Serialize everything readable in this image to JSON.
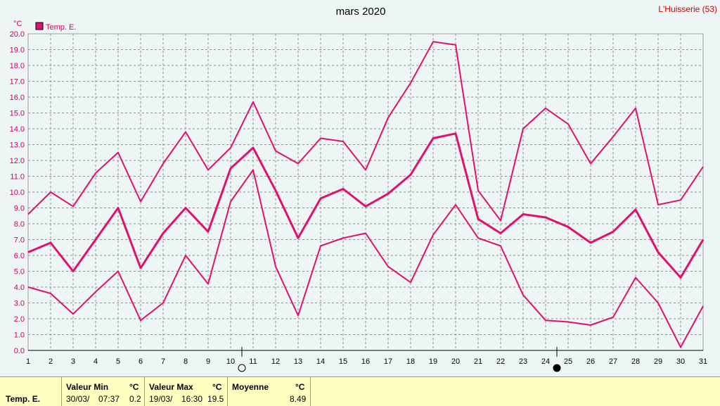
{
  "header": {
    "title": "mars 2020",
    "station": "L'Huisserie (53)"
  },
  "chart_data": {
    "type": "line",
    "title": "mars 2020",
    "ylabel": "°C",
    "legend": "Temp. E.",
    "legend_placement": "top-left",
    "grid": true,
    "ylim": [
      0,
      20
    ],
    "yticks": [
      "0.0",
      "1.0",
      "2.0",
      "3.0",
      "4.0",
      "5.0",
      "6.0",
      "7.0",
      "8.0",
      "9.0",
      "10.0",
      "11.0",
      "12.0",
      "13.0",
      "14.0",
      "15.0",
      "16.0",
      "17.0",
      "18.0",
      "19.0",
      "20.0"
    ],
    "xticks": [
      "1",
      "2",
      "3",
      "4",
      "5",
      "6",
      "7",
      "8",
      "9",
      "10",
      "11",
      "12",
      "13",
      "14",
      "15",
      "16",
      "17",
      "18",
      "19",
      "20",
      "21",
      "22",
      "23",
      "24",
      "25",
      "26",
      "27",
      "28",
      "29",
      "30",
      "31"
    ],
    "color": "#e0106e",
    "series": [
      {
        "role": "max",
        "values": [
          8.6,
          10.0,
          9.1,
          11.2,
          12.5,
          9.4,
          11.8,
          13.8,
          11.4,
          12.8,
          15.7,
          12.6,
          11.8,
          13.4,
          13.2,
          11.4,
          14.7,
          16.9,
          19.5,
          19.3,
          10.1,
          8.2,
          14.0,
          15.3,
          14.3,
          11.8,
          13.5,
          15.3,
          9.2,
          9.5,
          11.6
        ]
      },
      {
        "role": "mean",
        "values": [
          6.2,
          6.8,
          5.0,
          7.0,
          9.0,
          5.2,
          7.4,
          9.0,
          7.5,
          11.5,
          12.8,
          10.1,
          7.1,
          9.6,
          10.2,
          9.1,
          9.9,
          11.1,
          13.4,
          13.7,
          8.3,
          7.4,
          8.6,
          8.4,
          7.8,
          6.8,
          7.5,
          8.9,
          6.2,
          4.6,
          7.0
        ]
      },
      {
        "role": "min",
        "values": [
          4.0,
          3.6,
          2.3,
          3.7,
          5.0,
          1.9,
          3.0,
          6.0,
          4.2,
          9.4,
          11.4,
          5.3,
          2.2,
          6.6,
          7.1,
          7.4,
          5.3,
          4.3,
          7.3,
          9.2,
          7.1,
          6.6,
          3.5,
          1.9,
          1.8,
          1.6,
          2.1,
          4.6,
          3.0,
          0.2,
          2.8
        ]
      }
    ],
    "moon_phases": [
      {
        "day": 10,
        "phase": "full-moon"
      },
      {
        "day": 24,
        "phase": "new-moon"
      }
    ]
  },
  "stats": {
    "row_label": "Temp. E.",
    "min": {
      "label": "Valeur Min",
      "unit": "°C",
      "date": "30/03/",
      "time": "07:37",
      "value": "0.2"
    },
    "max": {
      "label": "Valeur Max",
      "unit": "°C",
      "date": "19/03/",
      "time": "16:30",
      "value": "19.5"
    },
    "mean": {
      "label": "Moyenne",
      "unit": "°C",
      "value": "8.49"
    }
  }
}
